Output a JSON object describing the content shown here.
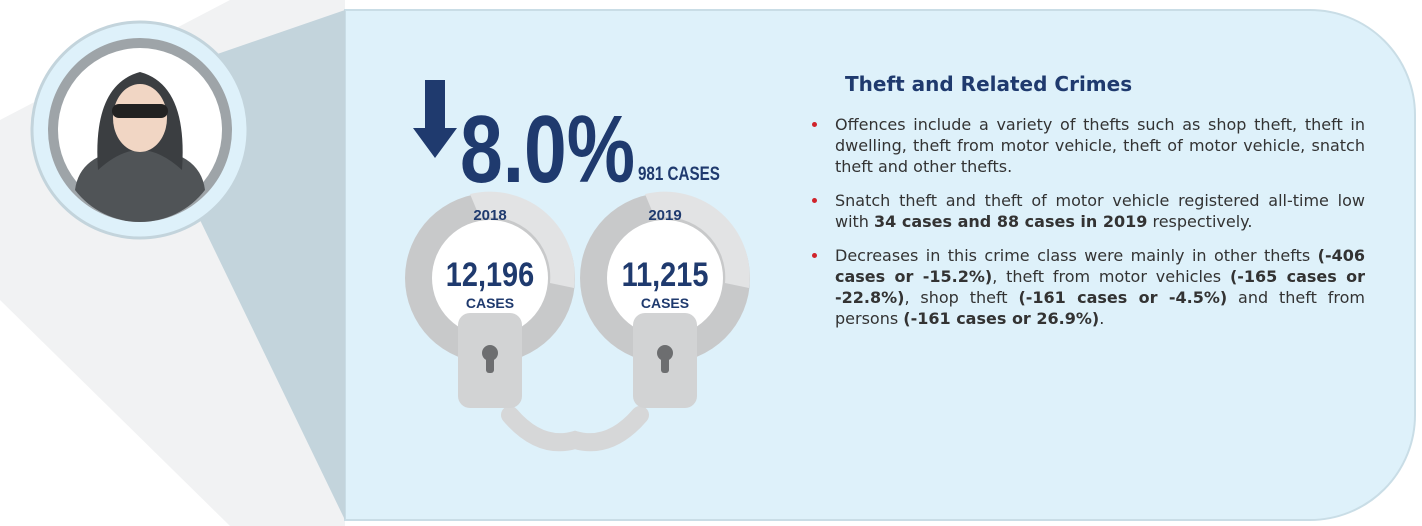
{
  "stat": {
    "change": "8.0%",
    "cases": "981 CASES"
  },
  "cuffs": [
    {
      "year": "2018",
      "count": "12,196",
      "unit": "CASES"
    },
    {
      "year": "2019",
      "count": "11,215",
      "unit": "CASES"
    }
  ],
  "section": {
    "title": "Theft and Related Crimes",
    "bullets": [
      [
        {
          "text": "Offences include a variety of thefts such as shop theft, theft in dwelling, theft from motor vehicle, theft of motor vehicle, snatch theft and other thefts.",
          "bold": false
        }
      ],
      [
        {
          "text": "Snatch theft and theft of motor vehicle registered all-time low with ",
          "bold": false
        },
        {
          "text": "34 cases and 88 cases in 2019",
          "bold": true
        },
        {
          "text": " respectively.",
          "bold": false
        }
      ],
      [
        {
          "text": "Decreases in this crime class were mainly in other thefts ",
          "bold": false
        },
        {
          "text": "(-406 cases or -15.2%)",
          "bold": true
        },
        {
          "text": ", theft from motor vehicles ",
          "bold": false
        },
        {
          "text": "(-165 cases or -22.8%)",
          "bold": true
        },
        {
          "text": ", shop theft ",
          "bold": false
        },
        {
          "text": "(-161 cases or -4.5%)",
          "bold": true
        },
        {
          "text": " and theft from persons ",
          "bold": false
        },
        {
          "text": "(-161 cases or 26.9%)",
          "bold": true
        },
        {
          "text": ".",
          "bold": false
        }
      ]
    ]
  }
}
